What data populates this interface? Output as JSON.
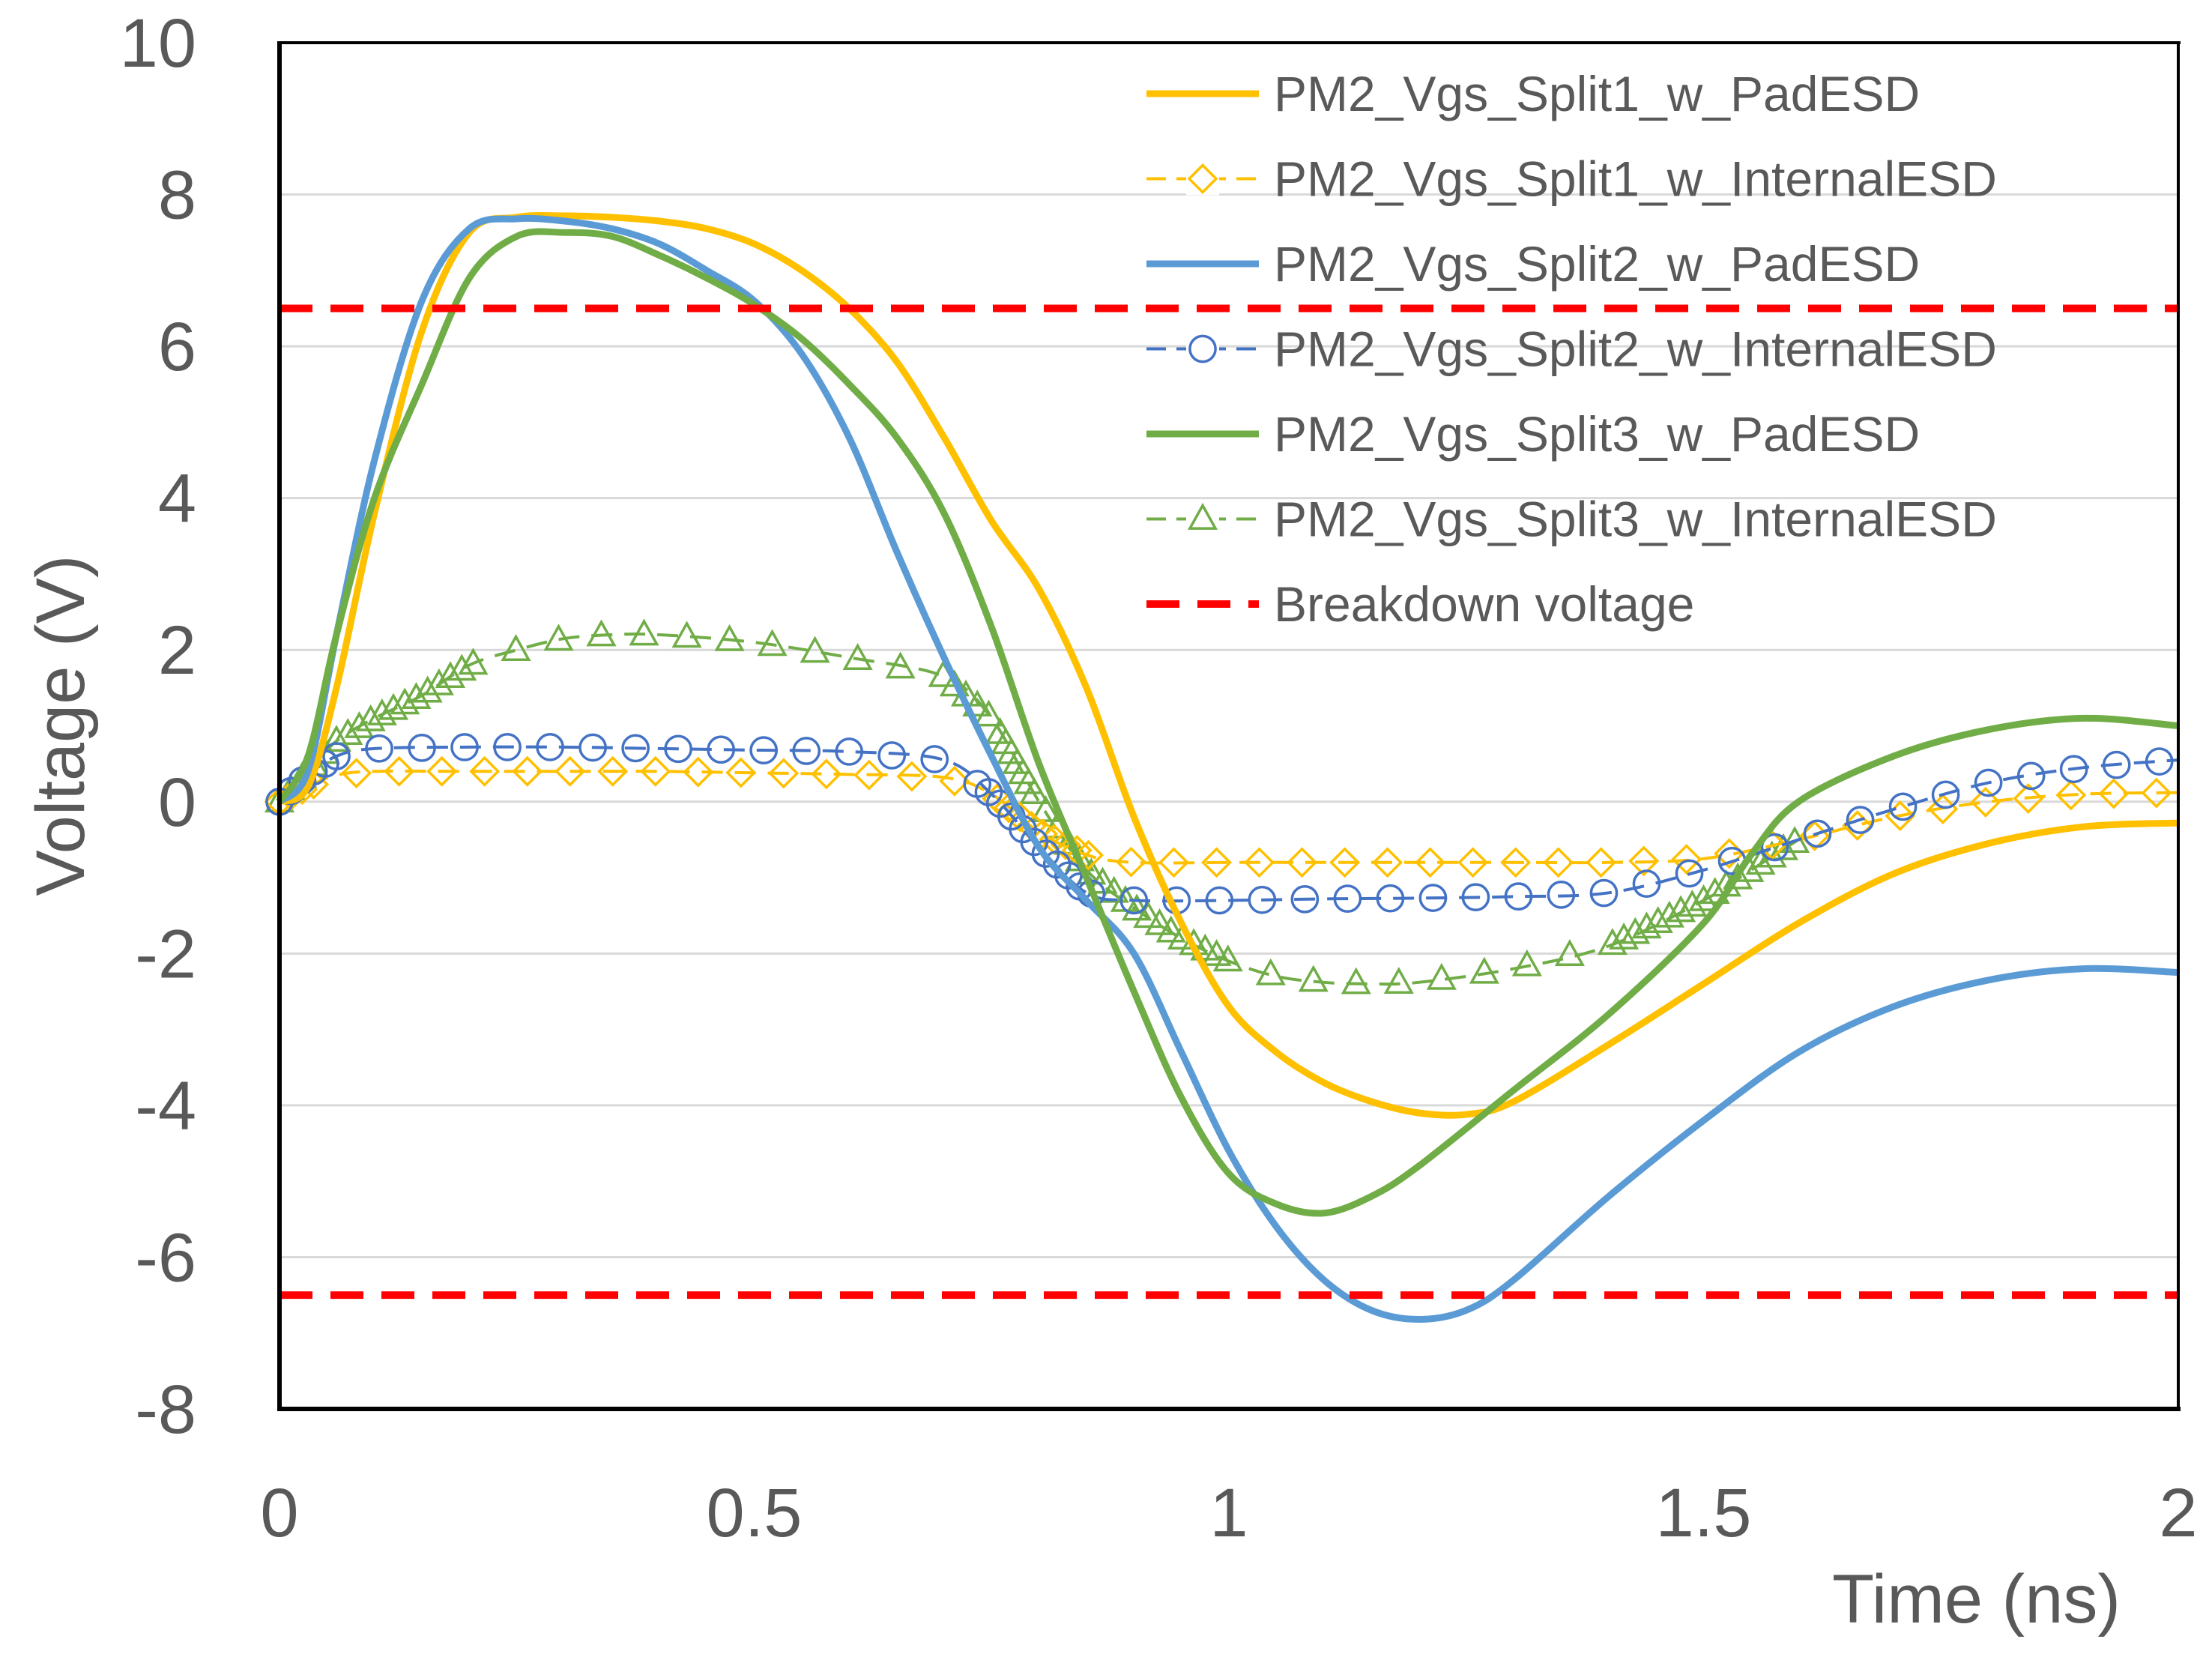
{
  "chart_data": {
    "type": "line",
    "title": "",
    "xlabel": "Time (ns)",
    "ylabel": "Voltage (V)",
    "xlim": [
      0,
      2
    ],
    "ylim": [
      -8,
      10
    ],
    "x_ticks": [
      0,
      0.5,
      1,
      1.5,
      2
    ],
    "x_tick_labels": [
      "0",
      "0.5",
      "1",
      "1.5",
      "2"
    ],
    "y_ticks": [
      10,
      8,
      6,
      4,
      2,
      0,
      -2,
      -4,
      -6,
      -8
    ],
    "y_tick_labels": [
      "10",
      "8",
      "6",
      "4",
      "2",
      "0",
      "-2",
      "-4",
      "-6",
      "-8"
    ],
    "grid": "horizontal",
    "legend_position": "top-right",
    "series": [
      {
        "name": "PM2_Vgs_Split1_w_PadESD",
        "color": "#FFC000",
        "style": "solid",
        "marker": "none",
        "points": [
          [
            0,
            0
          ],
          [
            0.03,
            0.2
          ],
          [
            0.06,
            1.5
          ],
          [
            0.1,
            3.8
          ],
          [
            0.15,
            6.2
          ],
          [
            0.2,
            7.5
          ],
          [
            0.25,
            7.7
          ],
          [
            0.3,
            7.72
          ],
          [
            0.35,
            7.7
          ],
          [
            0.4,
            7.65
          ],
          [
            0.45,
            7.55
          ],
          [
            0.5,
            7.35
          ],
          [
            0.55,
            7.0
          ],
          [
            0.6,
            6.5
          ],
          [
            0.65,
            5.8
          ],
          [
            0.7,
            4.8
          ],
          [
            0.75,
            3.7
          ],
          [
            0.8,
            2.8
          ],
          [
            0.85,
            1.5
          ],
          [
            0.9,
            -0.2
          ],
          [
            0.95,
            -1.6
          ],
          [
            1.0,
            -2.7
          ],
          [
            1.05,
            -3.3
          ],
          [
            1.1,
            -3.7
          ],
          [
            1.15,
            -3.95
          ],
          [
            1.2,
            -4.1
          ],
          [
            1.25,
            -4.12
          ],
          [
            1.3,
            -3.95
          ],
          [
            1.4,
            -3.2
          ],
          [
            1.5,
            -2.4
          ],
          [
            1.6,
            -1.6
          ],
          [
            1.7,
            -0.95
          ],
          [
            1.8,
            -0.55
          ],
          [
            1.9,
            -0.33
          ],
          [
            2.0,
            -0.28
          ]
        ]
      },
      {
        "name": "PM2_Vgs_Split1_w_InternalESD",
        "color": "#FFC000",
        "style": "dashed",
        "marker": "diamond",
        "points": [
          [
            0,
            0
          ],
          [
            0.03,
            0.2
          ],
          [
            0.06,
            0.35
          ],
          [
            0.1,
            0.4
          ],
          [
            0.2,
            0.4
          ],
          [
            0.3,
            0.4
          ],
          [
            0.4,
            0.4
          ],
          [
            0.5,
            0.38
          ],
          [
            0.6,
            0.36
          ],
          [
            0.7,
            0.32
          ],
          [
            0.75,
            0.1
          ],
          [
            0.8,
            -0.4
          ],
          [
            0.85,
            -0.7
          ],
          [
            0.9,
            -0.8
          ],
          [
            1.0,
            -0.8
          ],
          [
            1.1,
            -0.8
          ],
          [
            1.2,
            -0.8
          ],
          [
            1.3,
            -0.8
          ],
          [
            1.4,
            -0.8
          ],
          [
            1.5,
            -0.75
          ],
          [
            1.6,
            -0.5
          ],
          [
            1.7,
            -0.2
          ],
          [
            1.8,
            0.0
          ],
          [
            1.9,
            0.1
          ],
          [
            2.0,
            0.12
          ]
        ]
      },
      {
        "name": "PM2_Vgs_Split2_w_PadESD",
        "color": "#5B9BD5",
        "style": "solid",
        "marker": "none",
        "points": [
          [
            0,
            0
          ],
          [
            0.03,
            0.4
          ],
          [
            0.06,
            2.2
          ],
          [
            0.1,
            4.5
          ],
          [
            0.15,
            6.6
          ],
          [
            0.2,
            7.55
          ],
          [
            0.25,
            7.68
          ],
          [
            0.3,
            7.65
          ],
          [
            0.35,
            7.55
          ],
          [
            0.4,
            7.35
          ],
          [
            0.45,
            7.0
          ],
          [
            0.5,
            6.6
          ],
          [
            0.55,
            5.9
          ],
          [
            0.6,
            4.8
          ],
          [
            0.65,
            3.3
          ],
          [
            0.7,
            1.9
          ],
          [
            0.75,
            0.6
          ],
          [
            0.8,
            -0.6
          ],
          [
            0.85,
            -1.3
          ],
          [
            0.9,
            -2.0
          ],
          [
            0.95,
            -3.3
          ],
          [
            1.0,
            -4.6
          ],
          [
            1.05,
            -5.6
          ],
          [
            1.1,
            -6.3
          ],
          [
            1.15,
            -6.7
          ],
          [
            1.2,
            -6.82
          ],
          [
            1.25,
            -6.7
          ],
          [
            1.3,
            -6.3
          ],
          [
            1.4,
            -5.2
          ],
          [
            1.5,
            -4.2
          ],
          [
            1.6,
            -3.3
          ],
          [
            1.7,
            -2.7
          ],
          [
            1.8,
            -2.35
          ],
          [
            1.9,
            -2.2
          ],
          [
            2.0,
            -2.25
          ]
        ]
      },
      {
        "name": "PM2_Vgs_Split2_w_InternalESD",
        "color": "#4472C4",
        "style": "dashed",
        "marker": "circle",
        "points": [
          [
            0,
            0
          ],
          [
            0.03,
            0.35
          ],
          [
            0.06,
            0.6
          ],
          [
            0.1,
            0.7
          ],
          [
            0.2,
            0.72
          ],
          [
            0.3,
            0.72
          ],
          [
            0.4,
            0.7
          ],
          [
            0.5,
            0.68
          ],
          [
            0.6,
            0.66
          ],
          [
            0.7,
            0.55
          ],
          [
            0.75,
            0.1
          ],
          [
            0.8,
            -0.6
          ],
          [
            0.85,
            -1.2
          ],
          [
            0.9,
            -1.3
          ],
          [
            1.0,
            -1.3
          ],
          [
            1.1,
            -1.28
          ],
          [
            1.2,
            -1.27
          ],
          [
            1.3,
            -1.25
          ],
          [
            1.4,
            -1.2
          ],
          [
            1.5,
            -0.9
          ],
          [
            1.6,
            -0.5
          ],
          [
            1.7,
            -0.1
          ],
          [
            1.8,
            0.25
          ],
          [
            1.9,
            0.45
          ],
          [
            2.0,
            0.55
          ]
        ]
      },
      {
        "name": "PM2_Vgs_Split3_w_PadESD",
        "color": "#70AD47",
        "style": "solid",
        "marker": "none",
        "points": [
          [
            0,
            0
          ],
          [
            0.03,
            0.6
          ],
          [
            0.06,
            2.2
          ],
          [
            0.1,
            4.0
          ],
          [
            0.15,
            5.5
          ],
          [
            0.2,
            6.9
          ],
          [
            0.25,
            7.45
          ],
          [
            0.3,
            7.5
          ],
          [
            0.35,
            7.45
          ],
          [
            0.4,
            7.2
          ],
          [
            0.45,
            6.9
          ],
          [
            0.5,
            6.55
          ],
          [
            0.55,
            6.1
          ],
          [
            0.6,
            5.5
          ],
          [
            0.65,
            4.8
          ],
          [
            0.7,
            3.8
          ],
          [
            0.75,
            2.3
          ],
          [
            0.8,
            0.5
          ],
          [
            0.85,
            -1.0
          ],
          [
            0.9,
            -2.5
          ],
          [
            0.95,
            -3.9
          ],
          [
            1.0,
            -4.9
          ],
          [
            1.05,
            -5.3
          ],
          [
            1.1,
            -5.42
          ],
          [
            1.15,
            -5.2
          ],
          [
            1.2,
            -4.8
          ],
          [
            1.3,
            -3.8
          ],
          [
            1.4,
            -2.8
          ],
          [
            1.5,
            -1.6
          ],
          [
            1.55,
            -0.7
          ],
          [
            1.6,
            0.0
          ],
          [
            1.7,
            0.6
          ],
          [
            1.8,
            0.95
          ],
          [
            1.9,
            1.1
          ],
          [
            2.0,
            1.0
          ]
        ]
      },
      {
        "name": "PM2_Vgs_Split3_w_InternalESD",
        "color": "#70AD47",
        "style": "dashed",
        "marker": "triangle",
        "points": [
          [
            0,
            0
          ],
          [
            0.03,
            0.4
          ],
          [
            0.06,
            0.8
          ],
          [
            0.1,
            1.1
          ],
          [
            0.15,
            1.4
          ],
          [
            0.2,
            1.8
          ],
          [
            0.25,
            2.0
          ],
          [
            0.3,
            2.15
          ],
          [
            0.35,
            2.2
          ],
          [
            0.4,
            2.2
          ],
          [
            0.5,
            2.1
          ],
          [
            0.6,
            1.9
          ],
          [
            0.7,
            1.65
          ],
          [
            0.75,
            1.1
          ],
          [
            0.8,
            0.0
          ],
          [
            0.85,
            -0.9
          ],
          [
            0.9,
            -1.4
          ],
          [
            0.95,
            -1.8
          ],
          [
            1.0,
            -2.1
          ],
          [
            1.05,
            -2.3
          ],
          [
            1.1,
            -2.38
          ],
          [
            1.15,
            -2.4
          ],
          [
            1.2,
            -2.38
          ],
          [
            1.3,
            -2.2
          ],
          [
            1.4,
            -1.9
          ],
          [
            1.5,
            -1.3
          ],
          [
            1.55,
            -0.9
          ],
          [
            1.6,
            -0.5
          ]
        ]
      },
      {
        "name": "Breakdown voltage",
        "color": "#FF0000",
        "style": "dashed-thick",
        "marker": "none",
        "points": [
          [
            0,
            6.5
          ],
          [
            2,
            6.5
          ]
        ]
      },
      {
        "name": "",
        "color": "#FF0000",
        "style": "dashed-thick",
        "marker": "none",
        "points": [
          [
            0,
            -6.5
          ],
          [
            2,
            -6.5
          ]
        ]
      }
    ]
  }
}
